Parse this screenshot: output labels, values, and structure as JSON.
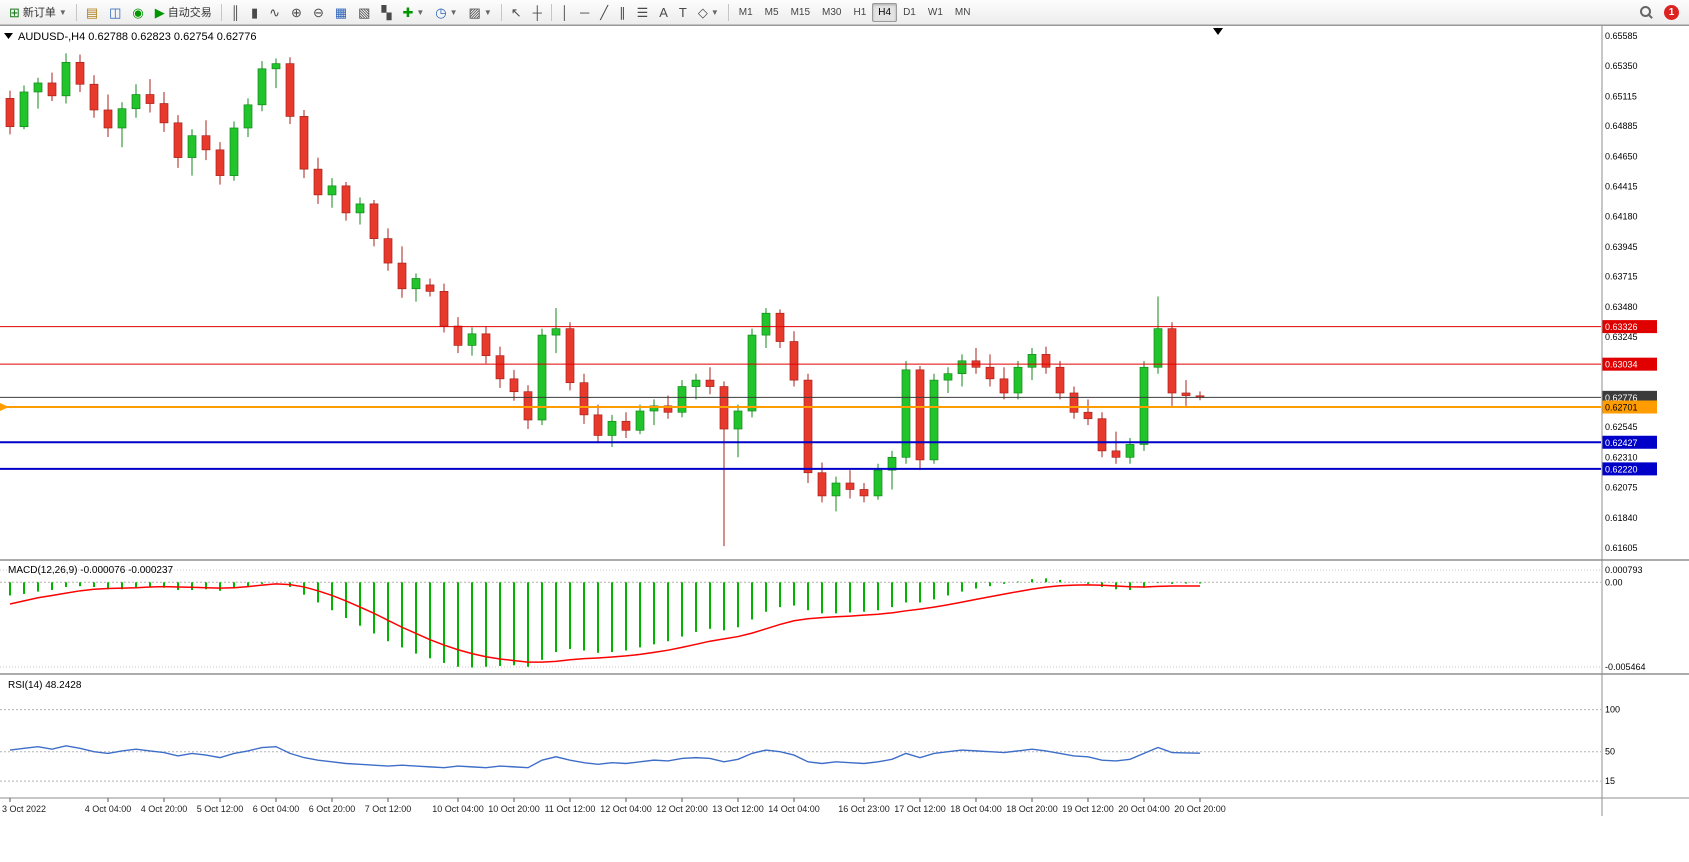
{
  "toolbar": {
    "new_order_label": "新订单",
    "autotrading_label": "自动交易",
    "timeframes": [
      "M1",
      "M5",
      "M15",
      "M30",
      "H1",
      "H4",
      "D1",
      "W1",
      "MN"
    ],
    "active_timeframe": "H4",
    "notification_count": "1"
  },
  "chart_data": {
    "type": "candlestick",
    "symbol": "AUDUSD-",
    "timeframe": "H4",
    "ohlc_text": "0.62788 0.62823 0.62754 0.62776",
    "current": {
      "open": 0.62788,
      "high": 0.62823,
      "low": 0.62754,
      "close": 0.62776
    },
    "price_axis": {
      "max": 0.65585,
      "min": 0.61605,
      "tick_labels": [
        0.65585,
        0.6535,
        0.65115,
        0.64885,
        0.6465,
        0.64415,
        0.6418,
        0.63945,
        0.63715,
        0.6348,
        0.63245,
        0.62545,
        0.6231,
        0.62075,
        0.6184,
        0.61605
      ]
    },
    "levels": [
      {
        "name": "resistance-line-1",
        "value": 0.63326,
        "color": "#E00000",
        "width": 1,
        "badge_text_color": "#FFFFFF"
      },
      {
        "name": "resistance-line-2",
        "value": 0.63034,
        "color": "#E00000",
        "width": 1,
        "badge_text_color": "#FFFFFF"
      },
      {
        "name": "bid-price-line",
        "value": 0.62776,
        "color": "#3C3C3C",
        "width": 1,
        "badge_text_color": "#FFFFFF"
      },
      {
        "name": "order-line",
        "value": 0.62701,
        "color": "#FF9C00",
        "width": 2,
        "badge_text_color": "#000000"
      },
      {
        "name": "support-line-1",
        "value": 0.62427,
        "color": "#0000C8",
        "width": 2,
        "badge_text_color": "#FFFFFF"
      },
      {
        "name": "support-line-2",
        "value": 0.6222,
        "color": "#0000C8",
        "width": 2,
        "badge_text_color": "#FFFFFF"
      }
    ],
    "colors": {
      "bull": "#21C42A",
      "bear": "#E8392D",
      "bull_border": "#12881A",
      "bear_border": "#A8211A",
      "macd_histogram": "#00B400",
      "macd_signal": "#FF0000",
      "rsi_line": "#3E6EC8"
    },
    "candles": [
      [
        "3 Oct 00:00",
        0.651,
        0.6516,
        0.6482,
        0.6488
      ],
      [
        "3 Oct 04:00",
        0.6488,
        0.652,
        0.6486,
        0.6515
      ],
      [
        "3 Oct 08:00",
        0.6515,
        0.6526,
        0.6502,
        0.6522
      ],
      [
        "3 Oct 12:00",
        0.6522,
        0.653,
        0.6508,
        0.6512
      ],
      [
        "3 Oct 16:00",
        0.6512,
        0.6545,
        0.6506,
        0.6538
      ],
      [
        "3 Oct 20:00",
        0.6538,
        0.6544,
        0.6515,
        0.6521
      ],
      [
        "4 Oct 00:00",
        0.6521,
        0.6528,
        0.6495,
        0.6501
      ],
      [
        "4 Oct 04:00",
        0.6501,
        0.6513,
        0.648,
        0.6487
      ],
      [
        "4 Oct 08:00",
        0.6487,
        0.6507,
        0.6472,
        0.6502
      ],
      [
        "4 Oct 12:00",
        0.6502,
        0.6521,
        0.6495,
        0.6513
      ],
      [
        "4 Oct 16:00",
        0.6513,
        0.6525,
        0.6499,
        0.6506
      ],
      [
        "4 Oct 20:00",
        0.6506,
        0.6515,
        0.6484,
        0.6491
      ],
      [
        "5 Oct 00:00",
        0.6491,
        0.6497,
        0.6456,
        0.6464
      ],
      [
        "5 Oct 04:00",
        0.6464,
        0.6486,
        0.645,
        0.6481
      ],
      [
        "5 Oct 08:00",
        0.6481,
        0.6493,
        0.6462,
        0.647
      ],
      [
        "5 Oct 12:00",
        0.647,
        0.6476,
        0.6443,
        0.645
      ],
      [
        "5 Oct 16:00",
        0.645,
        0.6492,
        0.6446,
        0.6487
      ],
      [
        "5 Oct 20:00",
        0.6487,
        0.651,
        0.648,
        0.6505
      ],
      [
        "6 Oct 00:00",
        0.6505,
        0.6539,
        0.65,
        0.6533
      ],
      [
        "6 Oct 04:00",
        0.6533,
        0.6541,
        0.6518,
        0.6537
      ],
      [
        "6 Oct 08:00",
        0.6537,
        0.6542,
        0.649,
        0.6496
      ],
      [
        "6 Oct 12:00",
        0.6496,
        0.6501,
        0.6448,
        0.6455
      ],
      [
        "6 Oct 16:00",
        0.6455,
        0.6464,
        0.6428,
        0.6435
      ],
      [
        "6 Oct 20:00",
        0.6435,
        0.6448,
        0.6425,
        0.6442
      ],
      [
        "7 Oct 00:00",
        0.6442,
        0.6445,
        0.6415,
        0.6421
      ],
      [
        "7 Oct 04:00",
        0.6421,
        0.6433,
        0.6412,
        0.6428
      ],
      [
        "7 Oct 08:00",
        0.6428,
        0.6431,
        0.6395,
        0.6401
      ],
      [
        "7 Oct 12:00",
        0.6401,
        0.6409,
        0.6376,
        0.6382
      ],
      [
        "7 Oct 16:00",
        0.6382,
        0.6395,
        0.6355,
        0.6362
      ],
      [
        "7 Oct 20:00",
        0.6362,
        0.6374,
        0.6352,
        0.637
      ],
      [
        "9 Oct 23:00",
        0.6365,
        0.637,
        0.6356,
        0.636
      ],
      [
        "10 Oct 00:00",
        0.636,
        0.6366,
        0.6328,
        0.6333
      ],
      [
        "10 Oct 04:00",
        0.6333,
        0.634,
        0.6312,
        0.6318
      ],
      [
        "10 Oct 08:00",
        0.6318,
        0.6332,
        0.631,
        0.6327
      ],
      [
        "10 Oct 12:00",
        0.6327,
        0.6333,
        0.6304,
        0.631
      ],
      [
        "10 Oct 16:00",
        0.631,
        0.6317,
        0.6285,
        0.6292
      ],
      [
        "10 Oct 20:00",
        0.6292,
        0.6299,
        0.6275,
        0.6282
      ],
      [
        "11 Oct 00:00",
        0.6282,
        0.6287,
        0.6253,
        0.626
      ],
      [
        "11 Oct 04:00",
        0.626,
        0.6331,
        0.6256,
        0.6326
      ],
      [
        "11 Oct 08:00",
        0.6326,
        0.6347,
        0.6312,
        0.6331
      ],
      [
        "11 Oct 12:00",
        0.6331,
        0.6336,
        0.6283,
        0.6289
      ],
      [
        "11 Oct 16:00",
        0.6289,
        0.6296,
        0.6257,
        0.6264
      ],
      [
        "11 Oct 20:00",
        0.6264,
        0.6272,
        0.6242,
        0.6248
      ],
      [
        "12 Oct 00:00",
        0.6248,
        0.6264,
        0.6239,
        0.6259
      ],
      [
        "12 Oct 04:00",
        0.6259,
        0.6266,
        0.6246,
        0.6252
      ],
      [
        "12 Oct 08:00",
        0.6252,
        0.6272,
        0.6249,
        0.6267
      ],
      [
        "12 Oct 12:00",
        0.6267,
        0.6276,
        0.6256,
        0.6271
      ],
      [
        "12 Oct 16:00",
        0.6271,
        0.6279,
        0.6261,
        0.6266
      ],
      [
        "12 Oct 20:00",
        0.6266,
        0.6291,
        0.6262,
        0.6286
      ],
      [
        "13 Oct 00:00",
        0.6286,
        0.6296,
        0.6276,
        0.6291
      ],
      [
        "13 Oct 04:00",
        0.6291,
        0.6301,
        0.628,
        0.6286
      ],
      [
        "13 Oct 08:00",
        0.6286,
        0.629,
        0.6162,
        0.6253
      ],
      [
        "13 Oct 12:00",
        0.6253,
        0.6272,
        0.6231,
        0.6267
      ],
      [
        "13 Oct 16:00",
        0.6267,
        0.6331,
        0.6262,
        0.6326
      ],
      [
        "13 Oct 20:00",
        0.6326,
        0.6347,
        0.6316,
        0.6343
      ],
      [
        "14 Oct 00:00",
        0.6343,
        0.6346,
        0.6316,
        0.6321
      ],
      [
        "14 Oct 04:00",
        0.6321,
        0.6329,
        0.6286,
        0.6291
      ],
      [
        "14 Oct 08:00",
        0.6291,
        0.6296,
        0.6211,
        0.6219
      ],
      [
        "14 Oct 12:00",
        0.6219,
        0.6227,
        0.6196,
        0.6201
      ],
      [
        "14 Oct 16:00",
        0.6201,
        0.6216,
        0.6189,
        0.6211
      ],
      [
        "14 Oct 20:00",
        0.6211,
        0.6221,
        0.6199,
        0.6206
      ],
      [
        "16 Oct 23:00",
        0.6206,
        0.6211,
        0.6196,
        0.6201
      ],
      [
        "17 Oct 00:00",
        0.6201,
        0.6226,
        0.6198,
        0.6221
      ],
      [
        "17 Oct 04:00",
        0.6221,
        0.6236,
        0.6206,
        0.6231
      ],
      [
        "17 Oct 08:00",
        0.6231,
        0.6306,
        0.6226,
        0.6299
      ],
      [
        "17 Oct 12:00",
        0.6299,
        0.6302,
        0.6221,
        0.6229
      ],
      [
        "17 Oct 16:00",
        0.6229,
        0.6296,
        0.6226,
        0.6291
      ],
      [
        "17 Oct 20:00",
        0.6291,
        0.6301,
        0.6281,
        0.6296
      ],
      [
        "18 Oct 00:00",
        0.6296,
        0.6311,
        0.6286,
        0.6306
      ],
      [
        "18 Oct 04:00",
        0.6306,
        0.6316,
        0.6296,
        0.6301
      ],
      [
        "18 Oct 08:00",
        0.6301,
        0.6311,
        0.6286,
        0.6292
      ],
      [
        "18 Oct 12:00",
        0.6292,
        0.6301,
        0.6276,
        0.6281
      ],
      [
        "18 Oct 16:00",
        0.6281,
        0.6306,
        0.6276,
        0.6301
      ],
      [
        "18 Oct 20:00",
        0.6301,
        0.6316,
        0.6291,
        0.6311
      ],
      [
        "19 Oct 00:00",
        0.6311,
        0.6317,
        0.6296,
        0.6301
      ],
      [
        "19 Oct 04:00",
        0.6301,
        0.6306,
        0.6276,
        0.6281
      ],
      [
        "19 Oct 08:00",
        0.6281,
        0.6286,
        0.6261,
        0.6266
      ],
      [
        "19 Oct 12:00",
        0.6266,
        0.6276,
        0.6256,
        0.6261
      ],
      [
        "19 Oct 16:00",
        0.6261,
        0.6266,
        0.6231,
        0.6236
      ],
      [
        "19 Oct 20:00",
        0.6236,
        0.6251,
        0.6226,
        0.6231
      ],
      [
        "20 Oct 00:00",
        0.6231,
        0.6246,
        0.6226,
        0.6241
      ],
      [
        "20 Oct 04:00",
        0.6241,
        0.6306,
        0.6236,
        0.6301
      ],
      [
        "20 Oct 08:00",
        0.6301,
        0.6356,
        0.6296,
        0.6331
      ],
      [
        "20 Oct 12:00",
        0.6331,
        0.6336,
        0.6271,
        0.6281
      ],
      [
        "20 Oct 16:00",
        0.6281,
        0.6291,
        0.6271,
        0.6279
      ],
      [
        "20 Oct 20:00",
        0.62788,
        0.62823,
        0.62754,
        0.62776
      ]
    ],
    "time_labels": [
      {
        "i": 0,
        "label": "3 Oct 2022"
      },
      {
        "i": 7,
        "label": "4 Oct 04:00"
      },
      {
        "i": 11,
        "label": "4 Oct 20:00"
      },
      {
        "i": 15,
        "label": "5 Oct 12:00"
      },
      {
        "i": 19,
        "label": "6 Oct 04:00"
      },
      {
        "i": 23,
        "label": "6 Oct 20:00"
      },
      {
        "i": 27,
        "label": "7 Oct 12:00"
      },
      {
        "i": 32,
        "label": "10 Oct 04:00"
      },
      {
        "i": 36,
        "label": "10 Oct 20:00"
      },
      {
        "i": 40,
        "label": "11 Oct 12:00"
      },
      {
        "i": 44,
        "label": "12 Oct 04:00"
      },
      {
        "i": 48,
        "label": "12 Oct 20:00"
      },
      {
        "i": 52,
        "label": "13 Oct 12:00"
      },
      {
        "i": 56,
        "label": "14 Oct 04:00"
      },
      {
        "i": 61,
        "label": "16 Oct 23:00"
      },
      {
        "i": 65,
        "label": "17 Oct 12:00"
      },
      {
        "i": 69,
        "label": "18 Oct 04:00"
      },
      {
        "i": 73,
        "label": "18 Oct 20:00"
      },
      {
        "i": 77,
        "label": "19 Oct 12:00"
      },
      {
        "i": 81,
        "label": "20 Oct 04:00"
      },
      {
        "i": 85,
        "label": "20 Oct 20:00"
      }
    ],
    "macd": {
      "label": "MACD(12,26,9)",
      "value_text": "-0.000076 -0.000237",
      "axis_max": 0.000793,
      "axis_min": -0.005464,
      "histogram": [
        -0.00085,
        -0.00075,
        -0.0006,
        -0.0005,
        -0.0003,
        -0.00025,
        -0.0003,
        -0.00045,
        -0.00045,
        -0.00035,
        -0.0003,
        -0.00035,
        -0.0005,
        -0.0005,
        -0.00045,
        -0.00055,
        -0.0004,
        -0.00025,
        -0.0001,
        0,
        -0.0003,
        -0.0008,
        -0.0013,
        -0.0018,
        -0.0023,
        -0.0028,
        -0.0033,
        -0.0038,
        -0.0042,
        -0.0046,
        -0.0049,
        -0.0052,
        -0.00545,
        -0.0055,
        -0.00545,
        -0.0054,
        -0.00535,
        -0.00545,
        -0.005,
        -0.0045,
        -0.0043,
        -0.0044,
        -0.00455,
        -0.0045,
        -0.0044,
        -0.0042,
        -0.004,
        -0.0038,
        -0.0035,
        -0.0032,
        -0.003,
        -0.0031,
        -0.0029,
        -0.0024,
        -0.0019,
        -0.0016,
        -0.0015,
        -0.0018,
        -0.002,
        -0.002,
        -0.00195,
        -0.0019,
        -0.0018,
        -0.0016,
        -0.0013,
        -0.0013,
        -0.0011,
        -0.00085,
        -0.0006,
        -0.0004,
        -0.00025,
        -0.0001,
        5e-05,
        0.0002,
        0.00025,
        0.00015,
        0,
        -0.0001,
        -0.0003,
        -0.00045,
        -0.0005,
        -0.00035,
        -5e-05,
        -0.0001,
        -8e-05,
        -7.6e-05
      ],
      "signal": [
        -0.0014,
        -0.0012,
        -0.001,
        -0.00085,
        -0.0007,
        -0.00055,
        -0.00045,
        -0.0004,
        -0.00038,
        -0.00035,
        -0.0003,
        -0.00028,
        -0.0003,
        -0.00032,
        -0.00035,
        -0.00038,
        -0.00035,
        -0.00028,
        -0.00018,
        -0.0001,
        -0.00015,
        -0.0003,
        -0.00055,
        -0.00085,
        -0.0012,
        -0.0016,
        -0.002,
        -0.00245,
        -0.0029,
        -0.0033,
        -0.0037,
        -0.00405,
        -0.00435,
        -0.0046,
        -0.0048,
        -0.00495,
        -0.00505,
        -0.00515,
        -0.00515,
        -0.0051,
        -0.005,
        -0.00492,
        -0.00488,
        -0.00482,
        -0.00475,
        -0.00465,
        -0.00452,
        -0.00438,
        -0.0042,
        -0.004,
        -0.0038,
        -0.00365,
        -0.0035,
        -0.00328,
        -0.003,
        -0.00272,
        -0.00248,
        -0.00235,
        -0.00228,
        -0.00222,
        -0.00218,
        -0.00212,
        -0.00206,
        -0.00197,
        -0.00184,
        -0.00173,
        -0.0016,
        -0.00145,
        -0.00128,
        -0.0011,
        -0.00093,
        -0.00076,
        -0.0006,
        -0.00044,
        -0.00031,
        -0.00022,
        -0.00018,
        -0.00017,
        -0.00019,
        -0.00024,
        -0.00029,
        -0.0003,
        -0.00026,
        -0.00024,
        -0.00024,
        -0.000237
      ]
    },
    "rsi": {
      "label": "RSI(14)",
      "value_text": "48.2428",
      "levels": [
        100,
        50,
        15
      ],
      "values": [
        52,
        54,
        56,
        53,
        57,
        54,
        50,
        48,
        51,
        53,
        51,
        49,
        45,
        48,
        46,
        43,
        48,
        51,
        55,
        56,
        48,
        43,
        40,
        38,
        36,
        35,
        34,
        33,
        34,
        33,
        32,
        31,
        33,
        32,
        31,
        33,
        32,
        31,
        40,
        44,
        40,
        37,
        35,
        37,
        36,
        38,
        40,
        39,
        42,
        43,
        42,
        38,
        41,
        48,
        52,
        50,
        46,
        38,
        36,
        38,
        37,
        36,
        38,
        41,
        48,
        43,
        48,
        50,
        52,
        51,
        50,
        49,
        51,
        53,
        51,
        48,
        45,
        44,
        40,
        39,
        41,
        48,
        55,
        49,
        48.5,
        48.24
      ]
    }
  }
}
